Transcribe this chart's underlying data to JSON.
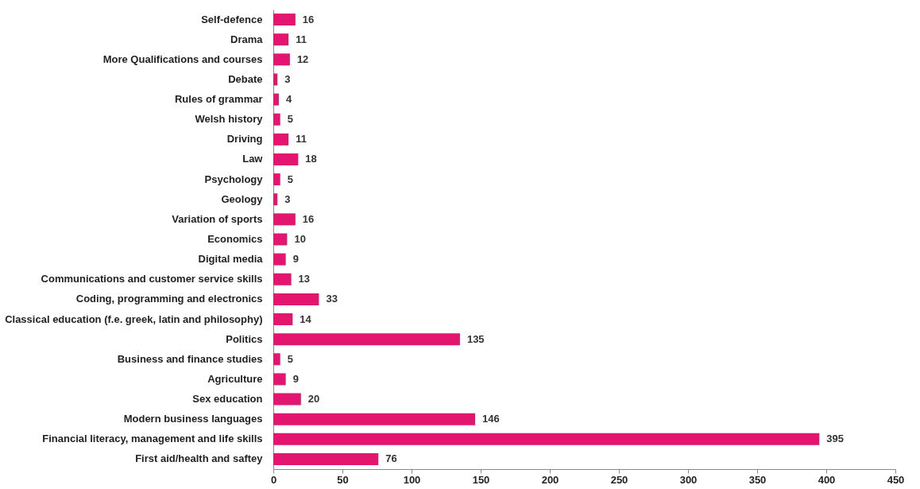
{
  "chart_data": {
    "type": "bar",
    "orientation": "horizontal",
    "categories": [
      "Self-defence",
      "Drama",
      "More Qualifications and courses",
      "Debate",
      "Rules of grammar",
      "Welsh history",
      "Driving",
      "Law",
      "Psychology",
      "Geology",
      "Variation of sports",
      "Economics",
      "Digital media",
      "Communications and customer service skills",
      "Coding, programming and electronics",
      "Classical education (f.e. greek, latin and philosophy)",
      "Politics",
      "Business and finance studies",
      "Agriculture",
      "Sex education",
      "Modern business languages",
      "Financial literacy, management and life skills",
      "First aid/health and saftey"
    ],
    "values": [
      16,
      11,
      12,
      3,
      4,
      5,
      11,
      18,
      5,
      3,
      16,
      10,
      9,
      13,
      33,
      14,
      135,
      5,
      9,
      20,
      146,
      395,
      76
    ],
    "color": "#e2156f",
    "xlim": [
      0,
      450
    ],
    "xticks": [
      0,
      50,
      100,
      150,
      200,
      250,
      300,
      350,
      400,
      450
    ],
    "grid": false,
    "data_labels": true
  }
}
